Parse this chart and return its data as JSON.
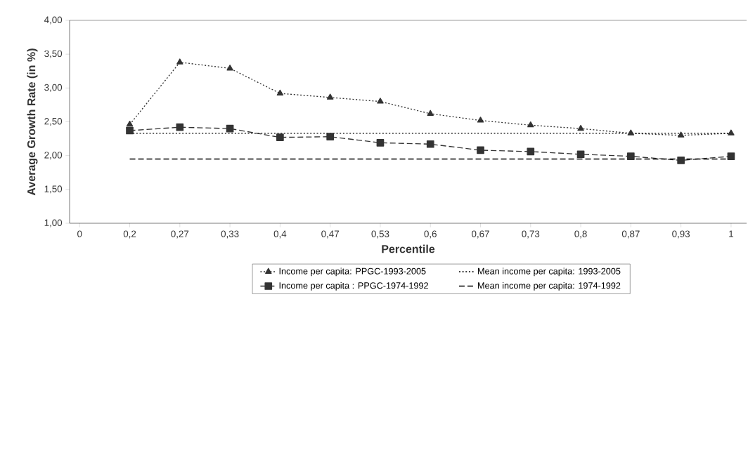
{
  "chart_data": {
    "type": "line",
    "xlabel": "Percentile",
    "ylabel": "Average Growth Rate (in %)",
    "categories": [
      "0",
      "0,2",
      "0,27",
      "0,33",
      "0,4",
      "0,47",
      "0,53",
      "0,6",
      "0,67",
      "0,73",
      "0,8",
      "0,87",
      "0,93",
      "1"
    ],
    "ylim": [
      1,
      4
    ],
    "yticks": [
      {
        "value": 1,
        "label": "1,00"
      },
      {
        "value": 1.5,
        "label": "1,50"
      },
      {
        "value": 2,
        "label": "2,00"
      },
      {
        "value": 2.5,
        "label": "2,50"
      },
      {
        "value": 3,
        "label": "3,00"
      },
      {
        "value": 3.5,
        "label": "3,50"
      },
      {
        "value": 4,
        "label": "4,00"
      }
    ],
    "legend": "bottom",
    "series": [
      {
        "name": "Income per capita: PPGC-1993-2005",
        "color": "#333333",
        "marker": "triangle",
        "line_style": "dotted",
        "values": [
          null,
          2.46,
          3.38,
          3.29,
          2.92,
          2.86,
          2.8,
          2.62,
          2.52,
          2.45,
          2.4,
          2.33,
          2.3,
          2.33
        ]
      },
      {
        "name": "Mean income per capita: 1993-2005",
        "color": "#000000",
        "marker": "none",
        "line_style": "dotted",
        "values": [
          null,
          2.33,
          2.33,
          2.33,
          2.33,
          2.33,
          2.33,
          2.33,
          2.33,
          2.33,
          2.33,
          2.33,
          2.33,
          2.33
        ]
      },
      {
        "name": "Income per capita : PPGC-1974-1992",
        "color": "#333333",
        "marker": "square",
        "line_style": "dashed",
        "values": [
          null,
          2.37,
          2.42,
          2.4,
          2.27,
          2.28,
          2.19,
          2.17,
          2.08,
          2.06,
          2.02,
          1.99,
          1.93,
          1.99
        ]
      },
      {
        "name": "Mean income per capita: 1974-1992",
        "color": "#000000",
        "marker": "none",
        "line_style": "dashed",
        "values": [
          null,
          1.95,
          1.95,
          1.95,
          1.95,
          1.95,
          1.95,
          1.95,
          1.95,
          1.95,
          1.95,
          1.95,
          1.95,
          1.95
        ]
      }
    ]
  }
}
